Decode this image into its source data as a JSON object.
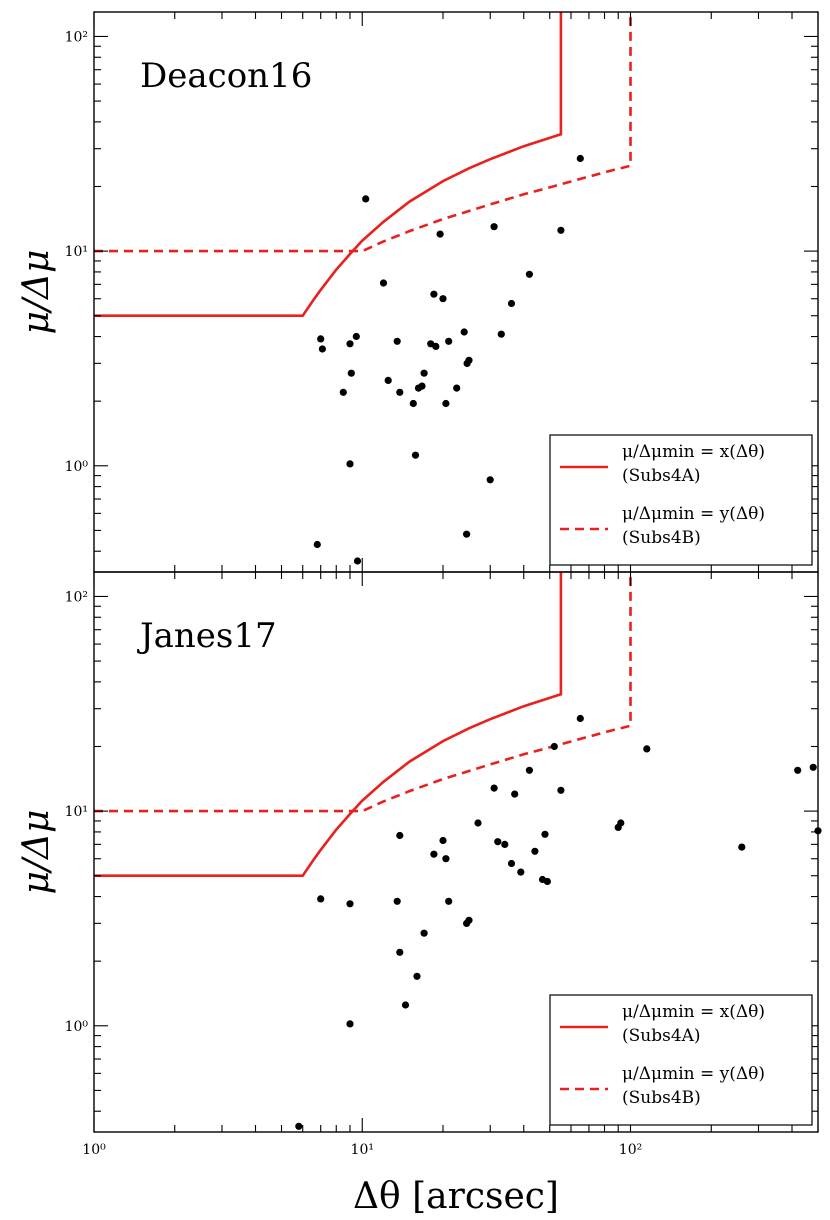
{
  "chart_data": [
    {
      "type": "scatter",
      "title": "Deacon16",
      "xlabel": "Δθ [arcsec]",
      "ylabel": "μ/Δμ",
      "xscale": "log",
      "yscale": "log",
      "xlim": [
        1,
        500
      ],
      "ylim": [
        0.32,
        130
      ],
      "grid": false,
      "legend_position": "bottom-right",
      "x_tick_labels": [
        "10⁰",
        "10¹",
        "10²"
      ],
      "y_tick_labels": [
        "10⁰",
        "10¹",
        "10²"
      ],
      "legend": [
        {
          "label": "μ/Δμmin = x(Δθ)",
          "sublabel": "(Subs4A)",
          "style": "solid",
          "color": "#e8201e"
        },
        {
          "label": "μ/Δμmin = y(Δθ)",
          "sublabel": "(Subs4B)",
          "style": "dashed",
          "color": "#e8201e"
        }
      ],
      "series": [
        {
          "name": "μ/Δμmin = x(Δθ)",
          "style": "solid",
          "color": "#e8201e",
          "x": [
            1,
            6,
            6.5,
            7,
            8,
            9,
            10,
            12,
            15,
            20,
            25,
            30,
            40,
            50,
            55,
            55
          ],
          "y": [
            5,
            5,
            5.8,
            6.6,
            8.2,
            9.7,
            11.2,
            13.7,
            17,
            21.2,
            24.3,
            26.8,
            30.8,
            33.7,
            35,
            130
          ]
        },
        {
          "name": "μ/Δμmin = y(Δθ)",
          "style": "dashed",
          "color": "#e8201e",
          "x": [
            1,
            10,
            12,
            15,
            20,
            30,
            40,
            50,
            60,
            80,
            100,
            100
          ],
          "y": [
            10,
            10,
            11.1,
            12.4,
            14.1,
            16.5,
            18.4,
            19.8,
            21.1,
            23.3,
            25,
            130
          ]
        },
        {
          "name": "",
          "style": "points",
          "color": "#000000",
          "x": [
            7,
            7.1,
            9,
            9.1,
            9.5,
            10.3,
            12,
            12.5,
            13.5,
            13.8,
            15.5,
            16.2,
            16.7,
            17,
            18,
            18.5,
            18.8,
            19.5,
            20,
            20.5,
            21,
            22.5,
            24,
            24.6,
            25,
            31,
            33,
            36,
            42,
            55,
            65,
            8.5,
            9,
            30,
            24.5,
            6.8,
            9.6,
            15.8
          ],
          "y": [
            3.9,
            3.5,
            3.7,
            2.7,
            4.0,
            17.5,
            7.1,
            2.5,
            3.8,
            2.2,
            1.95,
            2.3,
            2.35,
            2.7,
            3.7,
            6.3,
            3.6,
            12,
            6.0,
            1.95,
            3.8,
            2.3,
            4.2,
            3.0,
            3.1,
            13,
            4.1,
            5.7,
            7.8,
            12.5,
            27,
            2.2,
            1.02,
            0.86,
            0.48,
            0.43,
            0.36,
            1.12
          ]
        }
      ]
    },
    {
      "type": "scatter",
      "title": "Janes17",
      "xlabel": "Δθ [arcsec]",
      "ylabel": "μ/Δμ",
      "xscale": "log",
      "yscale": "log",
      "xlim": [
        1,
        500
      ],
      "ylim": [
        0.32,
        130
      ],
      "grid": false,
      "legend_position": "bottom-right",
      "x_tick_labels": [
        "10⁰",
        "10¹",
        "10²"
      ],
      "y_tick_labels": [
        "10⁰",
        "10¹",
        "10²"
      ],
      "legend": [
        {
          "label": "μ/Δμmin = x(Δθ)",
          "sublabel": "(Subs4A)",
          "style": "solid",
          "color": "#e8201e"
        },
        {
          "label": "μ/Δμmin = y(Δθ)",
          "sublabel": "(Subs4B)",
          "style": "dashed",
          "color": "#e8201e"
        }
      ],
      "series": [
        {
          "name": "μ/Δμmin = x(Δθ)",
          "style": "solid",
          "color": "#e8201e",
          "x": [
            1,
            6,
            6.5,
            7,
            8,
            9,
            10,
            12,
            15,
            20,
            25,
            30,
            40,
            50,
            55,
            55
          ],
          "y": [
            5,
            5,
            5.8,
            6.6,
            8.2,
            9.7,
            11.2,
            13.7,
            17,
            21.2,
            24.3,
            26.8,
            30.8,
            33.7,
            35,
            130
          ]
        },
        {
          "name": "μ/Δμmin = y(Δθ)",
          "style": "dashed",
          "color": "#e8201e",
          "x": [
            1,
            10,
            12,
            15,
            20,
            30,
            40,
            50,
            60,
            80,
            100,
            100
          ],
          "y": [
            10,
            10,
            11.1,
            12.4,
            14.1,
            16.5,
            18.4,
            19.8,
            21.1,
            23.3,
            25,
            130
          ]
        },
        {
          "name": "",
          "style": "points",
          "color": "#000000",
          "x": [
            7,
            9,
            13.5,
            13.8,
            14.5,
            16,
            17,
            18.5,
            20,
            20.5,
            21,
            24.5,
            25,
            27,
            31,
            32,
            34,
            36,
            37,
            39,
            42,
            44,
            47,
            48,
            49,
            52,
            55,
            65,
            90,
            92,
            115,
            260,
            420,
            480,
            500,
            5.8,
            9,
            13.8
          ],
          "y": [
            3.9,
            3.7,
            3.8,
            7.7,
            1.25,
            1.7,
            2.7,
            6.3,
            7.3,
            6.0,
            3.8,
            3.0,
            3.1,
            8.8,
            12.8,
            7.2,
            7.0,
            5.7,
            12,
            5.2,
            15.5,
            6.5,
            4.8,
            7.8,
            4.7,
            20,
            12.5,
            27,
            8.4,
            8.8,
            19.5,
            6.8,
            15.5,
            16,
            8.1,
            0.34,
            1.02,
            2.2
          ]
        }
      ]
    }
  ]
}
